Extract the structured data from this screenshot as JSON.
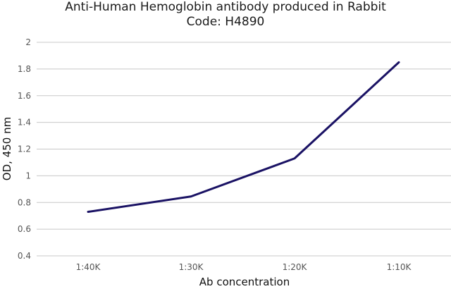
{
  "chart_data": {
    "type": "line",
    "title": "Anti-Human Hemoglobin antibody produced in Rabbit",
    "subtitle": "Code: H4890",
    "xlabel": "Ab concentration",
    "ylabel": "OD, 450 nm",
    "categories": [
      "1:40K",
      "1:30K",
      "1:20K",
      "1:10K"
    ],
    "series": [
      {
        "values": [
          0.73,
          0.845,
          1.13,
          1.85
        ],
        "color": "#1a1264"
      }
    ],
    "ylim": [
      0.4,
      2
    ],
    "yticks": [
      0.4,
      0.6,
      0.8,
      1,
      1.2,
      1.4,
      1.6,
      1.8,
      2
    ],
    "ytick_labels": [
      "0.4",
      "0.6",
      "0.8",
      "1",
      "1.2",
      "1.4",
      "1.6",
      "1.8",
      "2"
    ],
    "grid": true,
    "legend": "none"
  }
}
